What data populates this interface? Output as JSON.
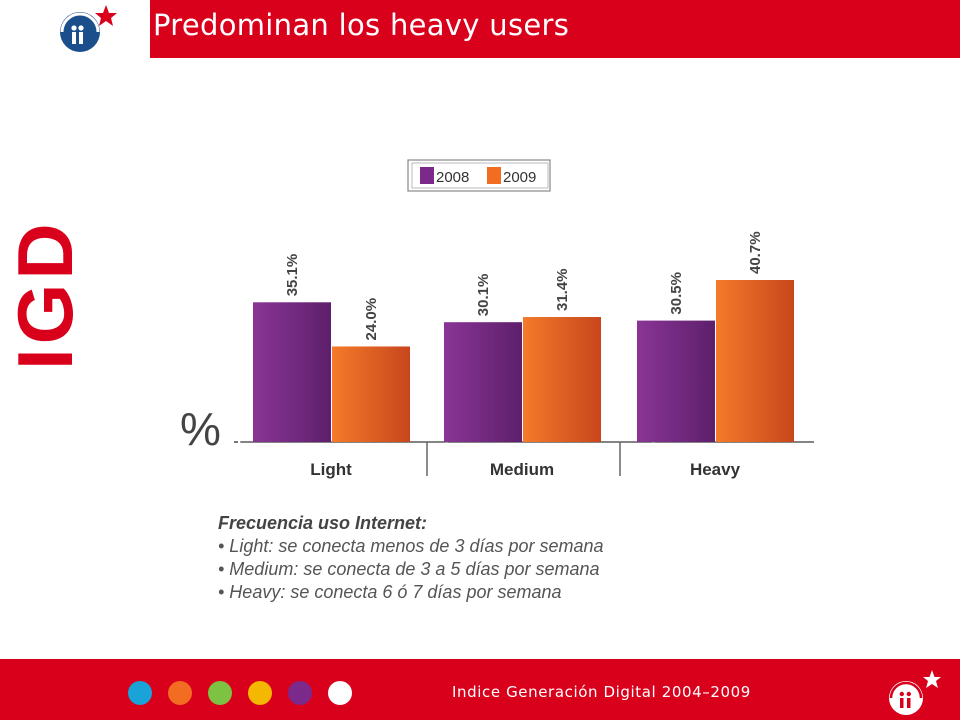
{
  "header": {
    "title": "Predominan los heavy users"
  },
  "brand": {
    "vertical_label": "IGD",
    "logo_icon": "igd-people-star-logo",
    "accent_color": "#d9001b"
  },
  "chart_data": {
    "type": "bar",
    "categories": [
      "Light",
      "Medium",
      "Heavy"
    ],
    "series": [
      {
        "name": "2008",
        "values": [
          35.1,
          30.1,
          30.5
        ],
        "labels": [
          "35.1%",
          "30.1%",
          "30.5%"
        ],
        "color": "#7b2a8c"
      },
      {
        "name": "2009",
        "values": [
          24.0,
          31.4,
          40.7
        ],
        "labels": [
          "24.0%",
          "31.4%",
          "40.7%"
        ],
        "color": "#f26c22"
      }
    ],
    "ylabel": "%",
    "ylim": [
      0,
      40.7
    ],
    "legend_position": "top-center",
    "grid": false
  },
  "notes": {
    "heading": "Frecuencia uso Internet:",
    "items": [
      "• Light: se conecta menos de 3 días por semana",
      "• Medium: se conecta de 3 a 5 días por semana",
      "• Heavy: se conecta 6 ó 7 días por semana"
    ]
  },
  "footer": {
    "text": "Indice Generación Digital 2004–2009",
    "dot_colors": [
      "#1aa3d6",
      "#f26c22",
      "#7dc242",
      "#f5b800",
      "#7b2a8c",
      "#ffffff"
    ]
  }
}
